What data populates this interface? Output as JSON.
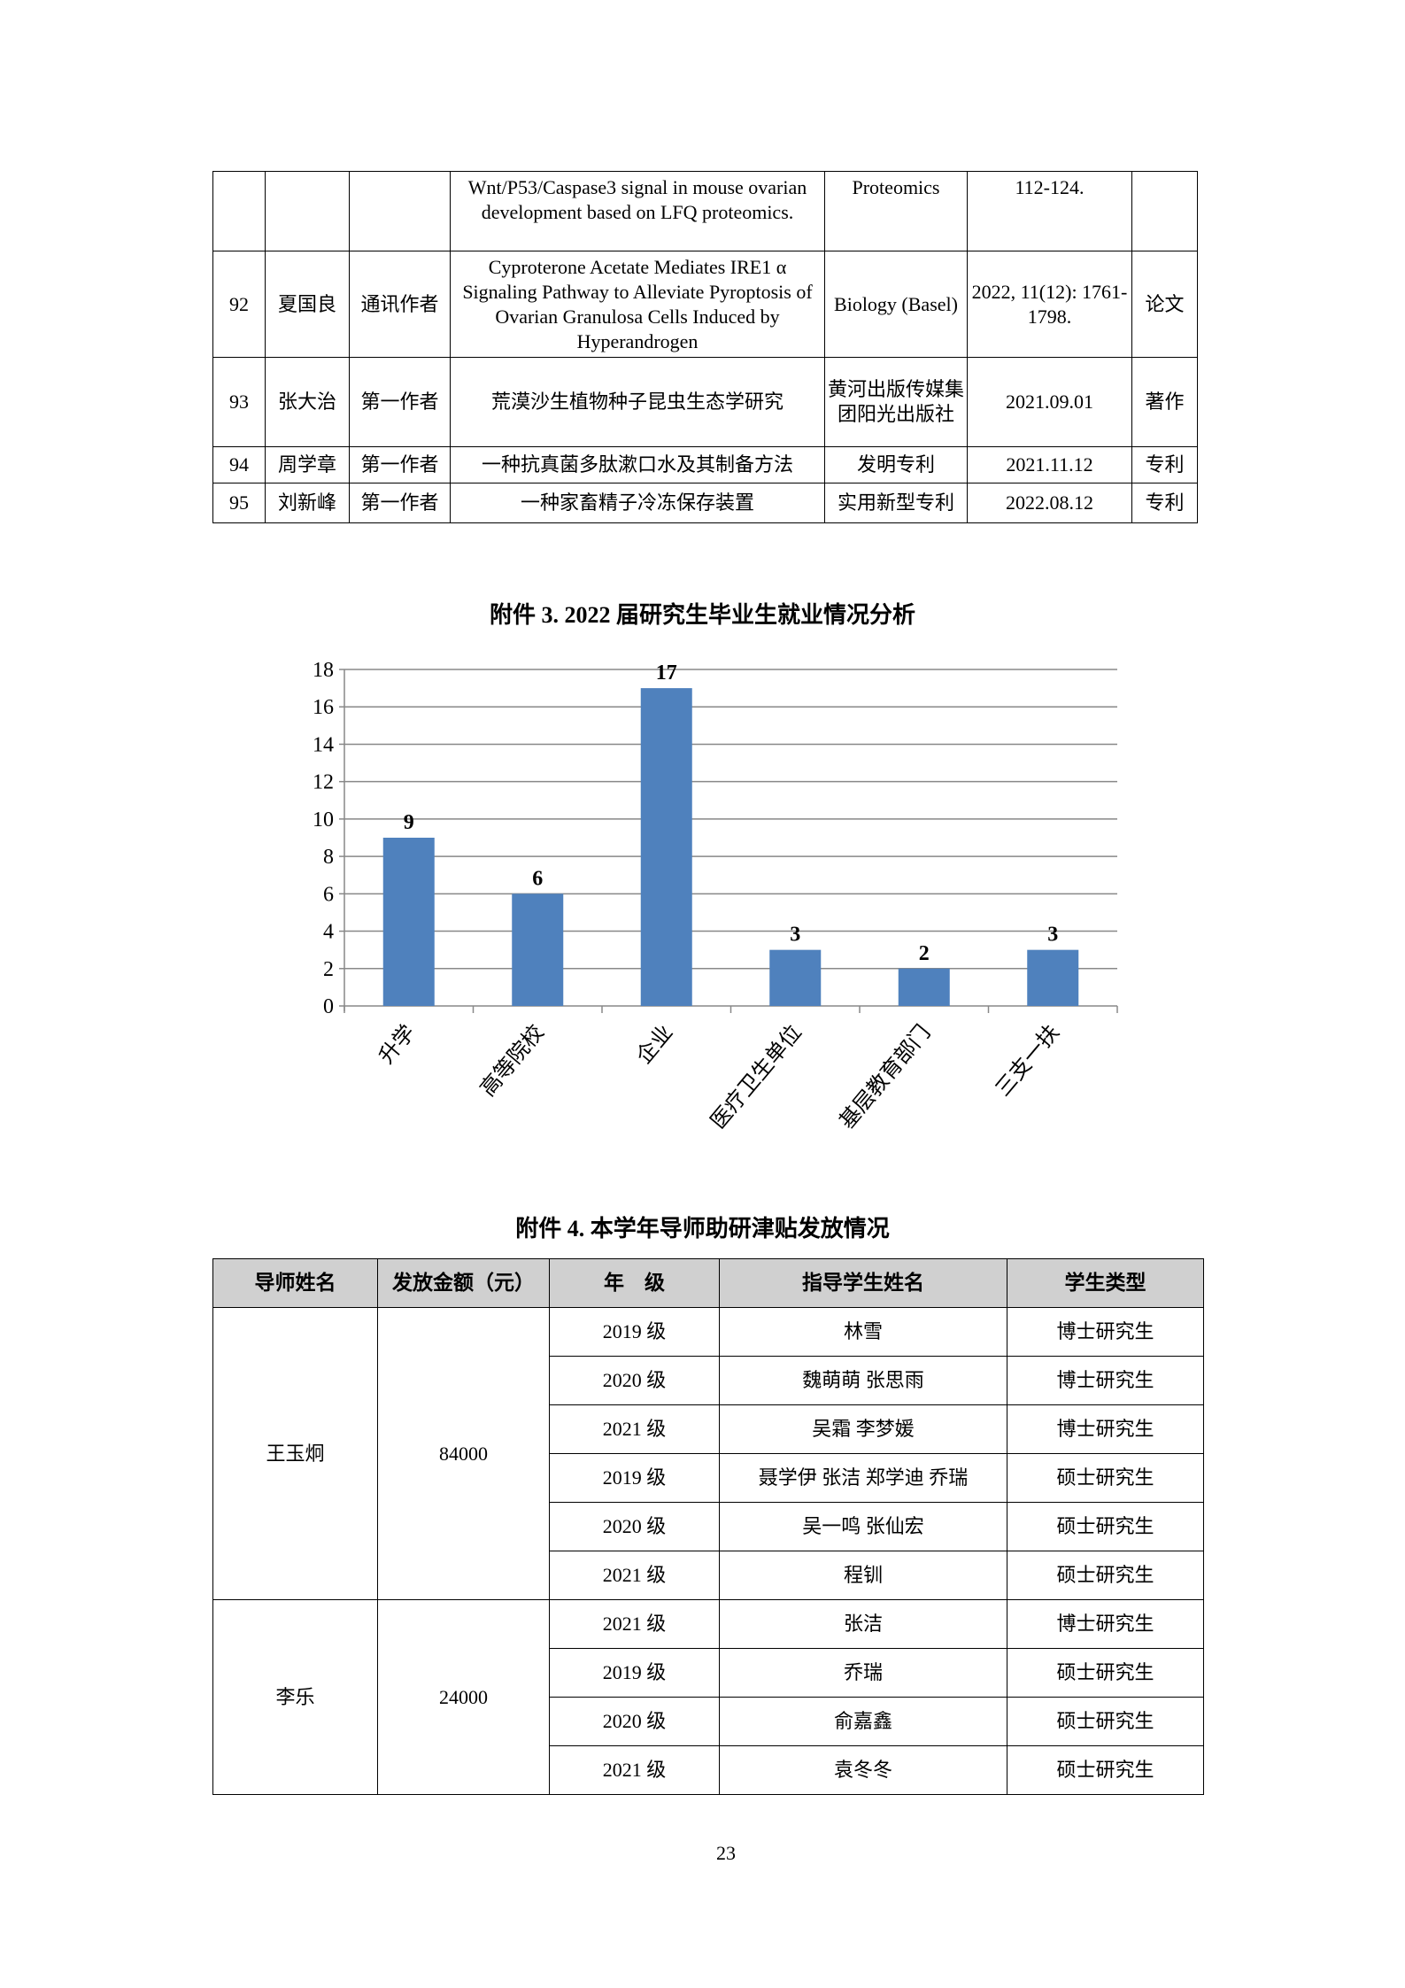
{
  "table1": {
    "rows": [
      {
        "no": "",
        "name": "",
        "role": "",
        "title": "Wnt/P53/Caspase3 signal in mouse ovarian development based on LFQ proteomics.",
        "venue": "Proteomics",
        "date": "112-124.",
        "type": ""
      },
      {
        "no": "92",
        "name": "夏国良",
        "role": "通讯作者",
        "title": "Cyproterone Acetate Mediates IRE1 α Signaling Pathway to Alleviate Pyroptosis of Ovarian Granulosa Cells Induced by Hyperandrogen",
        "venue": "Biology (Basel)",
        "date": "2022, 11(12): 1761-1798.",
        "type": "论文"
      },
      {
        "no": "93",
        "name": "张大治",
        "role": "第一作者",
        "title": "荒漠沙生植物种子昆虫生态学研究",
        "venue": "黄河出版传媒集团阳光出版社",
        "date": "2021.09.01",
        "type": "著作"
      },
      {
        "no": "94",
        "name": "周学章",
        "role": "第一作者",
        "title": "一种抗真菌多肽漱口水及其制备方法",
        "venue": "发明专利",
        "date": "2021.11.12",
        "type": "专利"
      },
      {
        "no": "95",
        "name": "刘新峰",
        "role": "第一作者",
        "title": "一种家畜精子冷冻保存装置",
        "venue": "实用新型专利",
        "date": "2022.08.12",
        "type": "专利"
      }
    ]
  },
  "chart_title": "附件 3. 2022 届研究生毕业生就业情况分析",
  "chart_data": {
    "type": "bar",
    "title": "附件 3. 2022 届研究生毕业生就业情况分析",
    "categories": [
      "升学",
      "高等院校",
      "企业",
      "医疗卫生单位",
      "基层教育部门",
      "三支一扶"
    ],
    "values": [
      9,
      6,
      17,
      3,
      2,
      3
    ],
    "ylim": [
      0,
      18
    ],
    "yticks": [
      0,
      2,
      4,
      6,
      8,
      10,
      12,
      14,
      16,
      18
    ],
    "grid": true,
    "bar_color": "#4f81bd",
    "data_labels": true
  },
  "table2": {
    "title": "附件 4. 本学年导师助研津贴发放情况",
    "headers": [
      "导师姓名",
      "发放金额（元）",
      "年　级",
      "指导学生姓名",
      "学生类型"
    ],
    "groups": [
      {
        "advisor": "王玉炯",
        "amount": "84000",
        "rows": [
          {
            "grade": "2019 级",
            "students": "林雪",
            "kind": "博士研究生"
          },
          {
            "grade": "2020 级",
            "students": "魏萌萌  张思雨",
            "kind": "博士研究生"
          },
          {
            "grade": "2021 级",
            "students": "吴霜  李梦媛",
            "kind": "博士研究生"
          },
          {
            "grade": "2019 级",
            "students": "聂学伊  张洁  郑学迪  乔瑞",
            "kind": "硕士研究生"
          },
          {
            "grade": "2020 级",
            "students": "吴一鸣  张仙宏",
            "kind": "硕士研究生"
          },
          {
            "grade": "2021 级",
            "students": "程钏",
            "kind": "硕士研究生"
          }
        ]
      },
      {
        "advisor": "李乐",
        "amount": "24000",
        "rows": [
          {
            "grade": "2021 级",
            "students": "张洁",
            "kind": "博士研究生"
          },
          {
            "grade": "2019 级",
            "students": "乔瑞",
            "kind": "硕士研究生"
          },
          {
            "grade": "2020 级",
            "students": "俞嘉鑫",
            "kind": "硕士研究生"
          },
          {
            "grade": "2021 级",
            "students": "袁冬冬",
            "kind": "硕士研究生"
          }
        ]
      }
    ]
  },
  "page_number": "23"
}
